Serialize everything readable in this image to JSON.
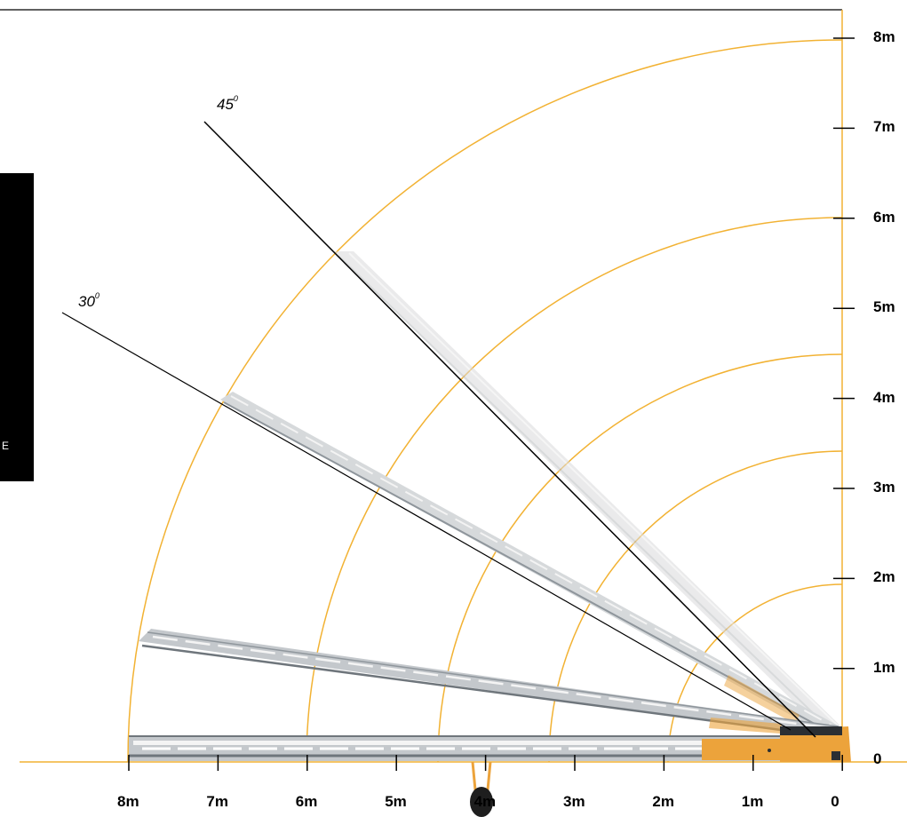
{
  "colors": {
    "arc": "#f2b233",
    "frame": "#000000",
    "conveyor_light": "#dcdcdc",
    "conveyor_mid": "#c4c8cc",
    "conveyor_dark": "#8f969c",
    "engine_orange": "#eca33b",
    "engine_dark": "#2b2f33"
  },
  "side_tab": {
    "mark": "E"
  },
  "axes": {
    "y_labels": [
      "8m",
      "7m",
      "6m",
      "5m",
      "4m",
      "3m",
      "2m",
      "1m",
      "0"
    ],
    "x_labels": [
      "8m",
      "7m",
      "6m",
      "5m",
      "4m",
      "3m",
      "2m",
      "1m",
      "0"
    ]
  },
  "angles": {
    "angle_45": {
      "value": "45",
      "unit": "0"
    },
    "angle_30": {
      "value": "30",
      "unit": "0"
    }
  },
  "arcs_m": [
    2,
    3.4,
    4.5,
    6,
    8
  ],
  "conveyor_positions_deg": [
    0,
    10,
    30,
    45
  ],
  "icons": [
    "pivot-wheel-icon",
    "engine-unit-icon"
  ]
}
